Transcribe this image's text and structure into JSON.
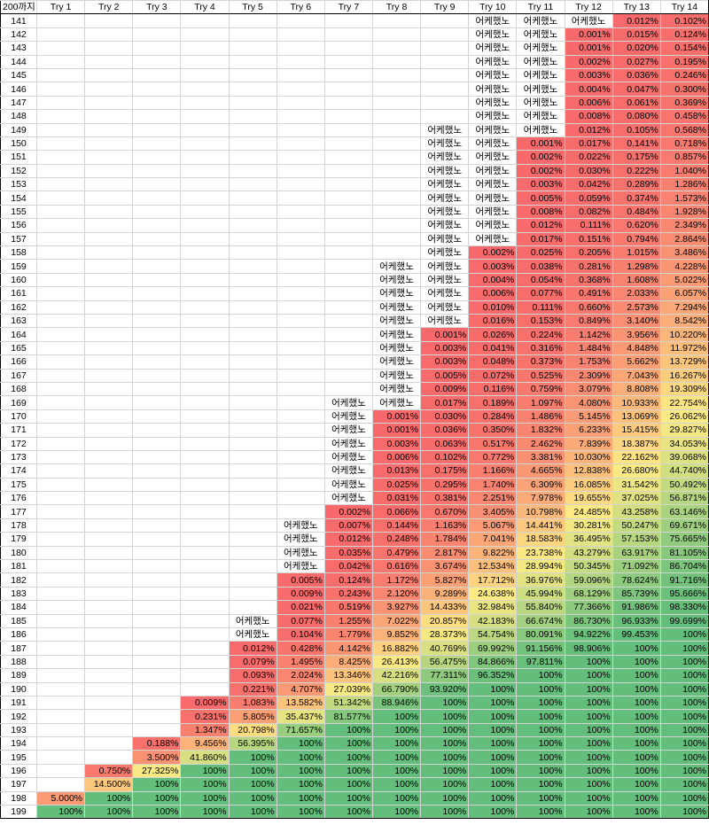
{
  "header": [
    "200까지",
    "Try 1",
    "Try 2",
    "Try 3",
    "Try 4",
    "Try 5",
    "Try 6",
    "Try 7",
    "Try 8",
    "Try 9",
    "Try 10",
    "Try 11",
    "Try 12",
    "Try 13",
    "Try 14"
  ],
  "colors": {
    "red": "#f8696b",
    "yellow": "#ffeb84",
    "green": "#63be7b",
    "empty": "#ffffff"
  },
  "rows": [
    [
      "141",
      "",
      "",
      "",
      "",
      "",
      "",
      "",
      "",
      "",
      "어케했노",
      "어케했노",
      "어케했노",
      "0.012%",
      "0.102%"
    ],
    [
      "142",
      "",
      "",
      "",
      "",
      "",
      "",
      "",
      "",
      "",
      "어케했노",
      "어케했노",
      "0.001%",
      "0.015%",
      "0.124%"
    ],
    [
      "143",
      "",
      "",
      "",
      "",
      "",
      "",
      "",
      "",
      "",
      "어케했노",
      "어케했노",
      "0.001%",
      "0.020%",
      "0.154%"
    ],
    [
      "144",
      "",
      "",
      "",
      "",
      "",
      "",
      "",
      "",
      "",
      "어케했노",
      "어케했노",
      "0.002%",
      "0.027%",
      "0.195%"
    ],
    [
      "145",
      "",
      "",
      "",
      "",
      "",
      "",
      "",
      "",
      "",
      "어케했노",
      "어케했노",
      "0.003%",
      "0.036%",
      "0.246%"
    ],
    [
      "146",
      "",
      "",
      "",
      "",
      "",
      "",
      "",
      "",
      "",
      "어케했노",
      "어케했노",
      "0.004%",
      "0.047%",
      "0.300%"
    ],
    [
      "147",
      "",
      "",
      "",
      "",
      "",
      "",
      "",
      "",
      "",
      "어케했노",
      "어케했노",
      "0.006%",
      "0.061%",
      "0.369%"
    ],
    [
      "148",
      "",
      "",
      "",
      "",
      "",
      "",
      "",
      "",
      "",
      "어케했노",
      "어케했노",
      "0.008%",
      "0.080%",
      "0.458%"
    ],
    [
      "149",
      "",
      "",
      "",
      "",
      "",
      "",
      "",
      "",
      "어케했노",
      "어케했노",
      "어케했노",
      "0.012%",
      "0.105%",
      "0.568%"
    ],
    [
      "150",
      "",
      "",
      "",
      "",
      "",
      "",
      "",
      "",
      "어케했노",
      "어케했노",
      "0.001%",
      "0.017%",
      "0.141%",
      "0.718%"
    ],
    [
      "151",
      "",
      "",
      "",
      "",
      "",
      "",
      "",
      "",
      "어케했노",
      "어케했노",
      "0.002%",
      "0.022%",
      "0.175%",
      "0.857%"
    ],
    [
      "152",
      "",
      "",
      "",
      "",
      "",
      "",
      "",
      "",
      "어케했노",
      "어케했노",
      "0.002%",
      "0.030%",
      "0.222%",
      "1.040%"
    ],
    [
      "153",
      "",
      "",
      "",
      "",
      "",
      "",
      "",
      "",
      "어케했노",
      "어케했노",
      "0.003%",
      "0.042%",
      "0.289%",
      "1.286%"
    ],
    [
      "154",
      "",
      "",
      "",
      "",
      "",
      "",
      "",
      "",
      "어케했노",
      "어케했노",
      "0.005%",
      "0.059%",
      "0.374%",
      "1.573%"
    ],
    [
      "155",
      "",
      "",
      "",
      "",
      "",
      "",
      "",
      "",
      "어케했노",
      "어케했노",
      "0.008%",
      "0.082%",
      "0.484%",
      "1.928%"
    ],
    [
      "156",
      "",
      "",
      "",
      "",
      "",
      "",
      "",
      "",
      "어케했노",
      "어케했노",
      "0.012%",
      "0.111%",
      "0.620%",
      "2.349%"
    ],
    [
      "157",
      "",
      "",
      "",
      "",
      "",
      "",
      "",
      "",
      "어케했노",
      "어케했노",
      "0.017%",
      "0.151%",
      "0.794%",
      "2.864%"
    ],
    [
      "158",
      "",
      "",
      "",
      "",
      "",
      "",
      "",
      "",
      "어케했노",
      "0.002%",
      "0.025%",
      "0.205%",
      "1.015%",
      "3.486%"
    ],
    [
      "159",
      "",
      "",
      "",
      "",
      "",
      "",
      "",
      "어케했노",
      "어케했노",
      "0.003%",
      "0.038%",
      "0.281%",
      "1.298%",
      "4.228%"
    ],
    [
      "160",
      "",
      "",
      "",
      "",
      "",
      "",
      "",
      "어케했노",
      "어케했노",
      "0.004%",
      "0.054%",
      "0.368%",
      "1.608%",
      "5.022%"
    ],
    [
      "161",
      "",
      "",
      "",
      "",
      "",
      "",
      "",
      "어케했노",
      "어케했노",
      "0.006%",
      "0.077%",
      "0.491%",
      "2.033%",
      "6.057%"
    ],
    [
      "162",
      "",
      "",
      "",
      "",
      "",
      "",
      "",
      "어케했노",
      "어케했노",
      "0.010%",
      "0.111%",
      "0.660%",
      "2.573%",
      "7.294%"
    ],
    [
      "163",
      "",
      "",
      "",
      "",
      "",
      "",
      "",
      "어케했노",
      "어케했노",
      "0.016%",
      "0.153%",
      "0.849%",
      "3.140%",
      "8.542%"
    ],
    [
      "164",
      "",
      "",
      "",
      "",
      "",
      "",
      "",
      "어케했노",
      "0.001%",
      "0.026%",
      "0.224%",
      "1.142%",
      "3.956%",
      "10.220%"
    ],
    [
      "165",
      "",
      "",
      "",
      "",
      "",
      "",
      "",
      "어케했노",
      "0.003%",
      "0.041%",
      "0.316%",
      "1.484%",
      "4.848%",
      "11.972%"
    ],
    [
      "166",
      "",
      "",
      "",
      "",
      "",
      "",
      "",
      "어케했노",
      "0.003%",
      "0.048%",
      "0.373%",
      "1.753%",
      "5.662%",
      "13.729%"
    ],
    [
      "167",
      "",
      "",
      "",
      "",
      "",
      "",
      "",
      "어케했노",
      "0.005%",
      "0.072%",
      "0.525%",
      "2.309%",
      "7.043%",
      "16.267%"
    ],
    [
      "168",
      "",
      "",
      "",
      "",
      "",
      "",
      "",
      "어케했노",
      "0.009%",
      "0.116%",
      "0.759%",
      "3.079%",
      "8.808%",
      "19.309%"
    ],
    [
      "169",
      "",
      "",
      "",
      "",
      "",
      "",
      "어케했노",
      "어케했노",
      "0.017%",
      "0.189%",
      "1.097%",
      "4.080%",
      "10.933%",
      "22.754%"
    ],
    [
      "170",
      "",
      "",
      "",
      "",
      "",
      "",
      "어케했노",
      "0.001%",
      "0.030%",
      "0.284%",
      "1.486%",
      "5.145%",
      "13.069%",
      "26.062%"
    ],
    [
      "171",
      "",
      "",
      "",
      "",
      "",
      "",
      "어케했노",
      "0.001%",
      "0.036%",
      "0.350%",
      "1.832%",
      "6.233%",
      "15.415%",
      "29.827%"
    ],
    [
      "172",
      "",
      "",
      "",
      "",
      "",
      "",
      "어케했노",
      "0.003%",
      "0.063%",
      "0.517%",
      "2.462%",
      "7.839%",
      "18.387%",
      "34.053%"
    ],
    [
      "173",
      "",
      "",
      "",
      "",
      "",
      "",
      "어케했노",
      "0.006%",
      "0.102%",
      "0.772%",
      "3.381%",
      "10.030%",
      "22.162%",
      "39.068%"
    ],
    [
      "174",
      "",
      "",
      "",
      "",
      "",
      "",
      "어케했노",
      "0.013%",
      "0.175%",
      "1.166%",
      "4.665%",
      "12.838%",
      "26.680%",
      "44.740%"
    ],
    [
      "175",
      "",
      "",
      "",
      "",
      "",
      "",
      "어케했노",
      "0.025%",
      "0.295%",
      "1.740%",
      "6.309%",
      "16.085%",
      "31.542%",
      "50.492%"
    ],
    [
      "176",
      "",
      "",
      "",
      "",
      "",
      "",
      "어케했노",
      "0.031%",
      "0.381%",
      "2.251%",
      "7.978%",
      "19.655%",
      "37.025%",
      "56.871%"
    ],
    [
      "177",
      "",
      "",
      "",
      "",
      "",
      "",
      "0.002%",
      "0.066%",
      "0.670%",
      "3.405%",
      "10.798%",
      "24.485%",
      "43.258%",
      "63.146%"
    ],
    [
      "178",
      "",
      "",
      "",
      "",
      "",
      "어케했노",
      "0.007%",
      "0.144%",
      "1.163%",
      "5.067%",
      "14.441%",
      "30.281%",
      "50.247%",
      "69.671%"
    ],
    [
      "179",
      "",
      "",
      "",
      "",
      "",
      "어케했노",
      "0.012%",
      "0.248%",
      "1.784%",
      "7.041%",
      "18.583%",
      "36.495%",
      "57.153%",
      "75.665%"
    ],
    [
      "180",
      "",
      "",
      "",
      "",
      "",
      "어케했노",
      "0.035%",
      "0.479%",
      "2.817%",
      "9.822%",
      "23.738%",
      "43.279%",
      "63.917%",
      "81.105%"
    ],
    [
      "181",
      "",
      "",
      "",
      "",
      "",
      "어케했노",
      "0.042%",
      "0.616%",
      "3.674%",
      "12.534%",
      "28.994%",
      "50.345%",
      "71.092%",
      "86.704%"
    ],
    [
      "182",
      "",
      "",
      "",
      "",
      "",
      "0.005%",
      "0.124%",
      "1.172%",
      "5.827%",
      "17.712%",
      "36.976%",
      "59.096%",
      "78.624%",
      "91.716%"
    ],
    [
      "183",
      "",
      "",
      "",
      "",
      "",
      "0.009%",
      "0.243%",
      "2.120%",
      "9.289%",
      "24.638%",
      "45.994%",
      "68.129%",
      "85.739%",
      "95.666%"
    ],
    [
      "184",
      "",
      "",
      "",
      "",
      "",
      "0.021%",
      "0.519%",
      "3.927%",
      "14.433%",
      "32.984%",
      "55.840%",
      "77.366%",
      "91.986%",
      "98.330%"
    ],
    [
      "185",
      "",
      "",
      "",
      "",
      "어케했노",
      "0.077%",
      "1.255%",
      "7.022%",
      "20.857%",
      "42.183%",
      "66.674%",
      "86.730%",
      "96.933%",
      "99.699%"
    ],
    [
      "186",
      "",
      "",
      "",
      "",
      "어케했노",
      "0.104%",
      "1.779%",
      "9.852%",
      "28.373%",
      "54.754%",
      "80.091%",
      "94.922%",
      "99.453%",
      "100%"
    ],
    [
      "187",
      "",
      "",
      "",
      "",
      "0.012%",
      "0.428%",
      "4.142%",
      "16.882%",
      "40.769%",
      "69.992%",
      "91.156%",
      "98.906%",
      "100%",
      "100%"
    ],
    [
      "188",
      "",
      "",
      "",
      "",
      "0.079%",
      "1.495%",
      "8.425%",
      "26.413%",
      "56.475%",
      "84.866%",
      "97.811%",
      "100%",
      "100%",
      "100%"
    ],
    [
      "189",
      "",
      "",
      "",
      "",
      "0.093%",
      "2.024%",
      "13.346%",
      "42.216%",
      "77.311%",
      "96.352%",
      "100%",
      "100%",
      "100%",
      "100%"
    ],
    [
      "190",
      "",
      "",
      "",
      "",
      "0.221%",
      "4.707%",
      "27.039%",
      "66.790%",
      "93.920%",
      "100%",
      "100%",
      "100%",
      "100%",
      "100%"
    ],
    [
      "191",
      "",
      "",
      "",
      "0.009%",
      "1.083%",
      "13.582%",
      "51.342%",
      "88.946%",
      "100%",
      "100%",
      "100%",
      "100%",
      "100%",
      "100%"
    ],
    [
      "192",
      "",
      "",
      "",
      "0.231%",
      "5.805%",
      "35.437%",
      "81.577%",
      "100%",
      "100%",
      "100%",
      "100%",
      "100%",
      "100%",
      "100%"
    ],
    [
      "193",
      "",
      "",
      "",
      "1.347%",
      "20.798%",
      "71.657%",
      "100%",
      "100%",
      "100%",
      "100%",
      "100%",
      "100%",
      "100%",
      "100%"
    ],
    [
      "194",
      "",
      "",
      "0.188%",
      "9.456%",
      "56.395%",
      "100%",
      "100%",
      "100%",
      "100%",
      "100%",
      "100%",
      "100%",
      "100%",
      "100%"
    ],
    [
      "195",
      "",
      "",
      "3.500%",
      "41.860%",
      "100%",
      "100%",
      "100%",
      "100%",
      "100%",
      "100%",
      "100%",
      "100%",
      "100%",
      "100%"
    ],
    [
      "196",
      "",
      "0.750%",
      "27.325%",
      "100%",
      "100%",
      "100%",
      "100%",
      "100%",
      "100%",
      "100%",
      "100%",
      "100%",
      "100%",
      "100%"
    ],
    [
      "197",
      "",
      "14.500%",
      "100%",
      "100%",
      "100%",
      "100%",
      "100%",
      "100%",
      "100%",
      "100%",
      "100%",
      "100%",
      "100%",
      "100%"
    ],
    [
      "198",
      "5.000%",
      "100%",
      "100%",
      "100%",
      "100%",
      "100%",
      "100%",
      "100%",
      "100%",
      "100%",
      "100%",
      "100%",
      "100%",
      "100%"
    ],
    [
      "199",
      "100%",
      "100%",
      "100%",
      "100%",
      "100%",
      "100%",
      "100%",
      "100%",
      "100%",
      "100%",
      "100%",
      "100%",
      "100%",
      "100%"
    ]
  ]
}
